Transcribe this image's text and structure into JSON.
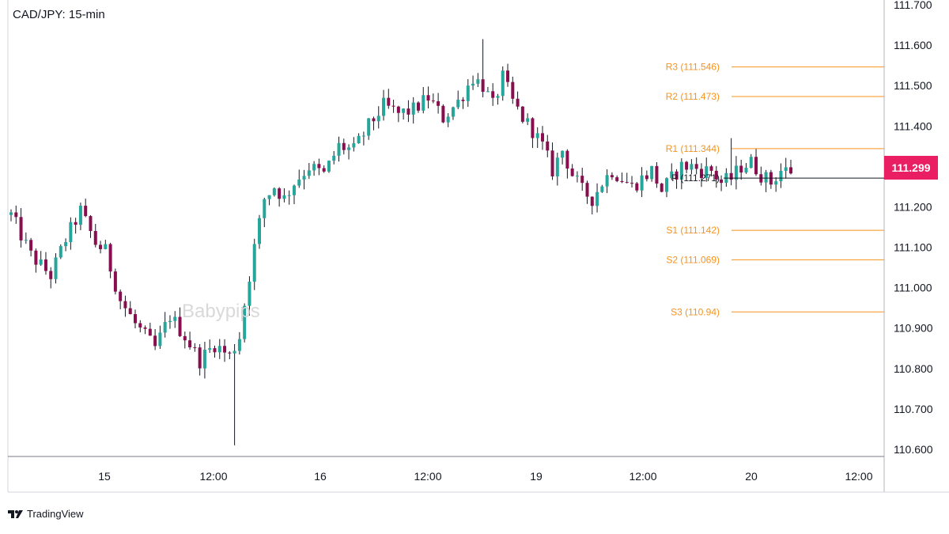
{
  "chart_data": {
    "type": "candlestick",
    "title": "CAD/JPY: 15-min",
    "watermark": "Babypips",
    "x_ticks": [
      "15",
      "12:00",
      "16",
      "12:00",
      "19",
      "12:00",
      "20",
      "12:00"
    ],
    "y_ticks": [
      "111.700",
      "111.600",
      "111.500",
      "111.400",
      "111.300",
      "111.200",
      "111.100",
      "111.000",
      "110.900",
      "110.800",
      "110.700",
      "110.600"
    ],
    "ylim": [
      110.57,
      111.7
    ],
    "last_price": "111.299",
    "pivot_levels": [
      {
        "label": "R3 (111.546)",
        "value": 111.546
      },
      {
        "label": "R2 (111.473)",
        "value": 111.473
      },
      {
        "label": "R1 (111.344)",
        "value": 111.344
      },
      {
        "label": "P (111.271)",
        "value": 111.271
      },
      {
        "label": "S1 (111.142)",
        "value": 111.142
      },
      {
        "label": "S2 (111.069)",
        "value": 111.069
      },
      {
        "label": "S3 (110.94)",
        "value": 110.94
      }
    ],
    "price_path": [
      [
        0,
        111.18
      ],
      [
        4,
        111.08
      ],
      [
        8,
        111.03
      ],
      [
        11,
        111.12
      ],
      [
        14,
        111.19
      ],
      [
        17,
        111.11
      ],
      [
        19,
        111.09
      ],
      [
        22,
        110.97
      ],
      [
        25,
        110.91
      ],
      [
        29,
        110.85
      ],
      [
        32,
        110.93
      ],
      [
        35,
        110.88
      ],
      [
        38,
        110.82
      ],
      [
        41,
        110.86
      ],
      [
        44,
        110.83
      ],
      [
        46,
        110.88
      ],
      [
        47,
        110.96
      ],
      [
        49,
        111.1
      ],
      [
        51,
        111.22
      ],
      [
        53,
        111.25
      ],
      [
        55,
        111.22
      ],
      [
        57,
        111.26
      ],
      [
        60,
        111.3
      ],
      [
        63,
        111.28
      ],
      [
        66,
        111.35
      ],
      [
        69,
        111.34
      ],
      [
        72,
        111.4
      ],
      [
        75,
        111.45
      ],
      [
        78,
        111.43
      ],
      [
        81,
        111.44
      ],
      [
        84,
        111.47
      ],
      [
        87,
        111.42
      ],
      [
        90,
        111.46
      ],
      [
        93,
        111.52
      ],
      [
        95,
        111.5
      ],
      [
        97,
        111.45
      ],
      [
        99,
        111.52
      ],
      [
        101,
        111.46
      ],
      [
        103,
        111.42
      ],
      [
        105,
        111.39
      ],
      [
        107,
        111.35
      ],
      [
        109,
        111.29
      ],
      [
        111,
        111.34
      ],
      [
        113,
        111.28
      ],
      [
        115,
        111.24
      ],
      [
        117,
        111.22
      ],
      [
        119,
        111.26
      ],
      [
        121,
        111.29
      ],
      [
        123,
        111.27
      ],
      [
        125,
        111.25
      ],
      [
        127,
        111.27
      ],
      [
        129,
        111.29
      ],
      [
        131,
        111.24
      ],
      [
        133,
        111.27
      ],
      [
        135,
        111.3
      ],
      [
        137,
        111.3
      ],
      [
        139,
        111.29
      ],
      [
        141,
        111.29
      ],
      [
        143,
        111.26
      ],
      [
        145,
        111.27
      ],
      [
        147,
        111.3
      ],
      [
        149,
        111.31
      ],
      [
        151,
        111.28
      ],
      [
        153,
        111.26
      ],
      [
        155,
        111.29
      ],
      [
        157,
        111.29
      ]
    ],
    "special_wicks": [
      {
        "index": 45,
        "low": 110.61
      },
      {
        "index": 95,
        "high": 111.615
      },
      {
        "index": 145,
        "high": 111.37
      }
    ],
    "colors": {
      "up": "#26a69a",
      "down": "#880e4f",
      "pivot": "#f7931a",
      "pivot_p": "#131722",
      "price_tag": "#e91e63",
      "axis_text": "#131722"
    }
  },
  "footer": {
    "brand": "TradingView"
  }
}
